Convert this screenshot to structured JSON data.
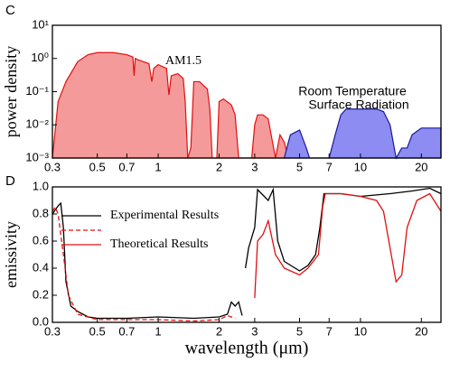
{
  "chart_data": [
    {
      "type": "area",
      "panel_label": "C",
      "ylabel": "power density",
      "xlog": true,
      "ylog": true,
      "xlim": [
        0.3,
        25
      ],
      "ylim": [
        0.001,
        10
      ],
      "xticks": [
        0.3,
        0.5,
        0.7,
        1,
        2,
        3,
        5,
        7,
        10,
        20
      ],
      "yticks": [
        {
          "value": 10,
          "label": "10¹"
        },
        {
          "value": 1,
          "label": "10⁰"
        },
        {
          "value": 0.1,
          "label": "10⁻¹"
        },
        {
          "value": 0.01,
          "label": "10⁻²"
        },
        {
          "value": 0.001,
          "label": "10⁻³"
        }
      ],
      "annotations": [
        "AM1.5",
        "Room Temperature",
        "Surface Radiation"
      ],
      "series": [
        {
          "color": "#e01010",
          "fill": "#f59a9a",
          "x": [
            0.3,
            0.32,
            0.35,
            0.4,
            0.45,
            0.5,
            0.6,
            0.7,
            0.75,
            0.76,
            0.77,
            0.8,
            0.9,
            0.93,
            0.95,
            1.0,
            1.1,
            1.13,
            1.16,
            1.25,
            1.33,
            1.36,
            1.4,
            1.45,
            1.5,
            1.6,
            1.75,
            1.8,
            1.85,
            1.95,
            2.0,
            2.1,
            2.3,
            2.4,
            2.5,
            2.6,
            2.9,
            3.0,
            3.1,
            3.3,
            3.5,
            3.8,
            4.0,
            4.2,
            4.4
          ],
          "values": [
            0.001,
            0.05,
            0.2,
            0.8,
            1.3,
            1.5,
            1.5,
            1.3,
            1.1,
            0.3,
            1.0,
            0.9,
            0.7,
            0.2,
            0.5,
            0.65,
            0.5,
            0.08,
            0.3,
            0.35,
            0.25,
            0.05,
            0.001,
            0.002,
            0.2,
            0.2,
            0.12,
            0.03,
            0.001,
            0.001,
            0.05,
            0.06,
            0.04,
            0.02,
            0.001,
            0.001,
            0.001,
            0.01,
            0.02,
            0.02,
            0.015,
            0.001,
            0.005,
            0.003,
            0.001
          ]
        },
        {
          "color": "#1a1a9a",
          "fill": "#8c8cf2",
          "x": [
            4.2,
            4.5,
            5.0,
            5.4,
            5.6,
            7.0,
            7.5,
            8.0,
            8.5,
            10,
            12,
            13,
            14,
            15,
            16,
            17,
            18,
            20,
            22,
            25
          ],
          "values": [
            0.001,
            0.005,
            0.007,
            0.002,
            0.001,
            0.001,
            0.005,
            0.02,
            0.03,
            0.03,
            0.03,
            0.025,
            0.01,
            0.001,
            0.002,
            0.002,
            0.005,
            0.008,
            0.008,
            0.008
          ]
        }
      ]
    },
    {
      "type": "line",
      "panel_label": "D",
      "ylabel": "emissivity",
      "xlabel": "wavelength (μm)",
      "xlog": true,
      "ylog": false,
      "xlim": [
        0.3,
        25
      ],
      "ylim": [
        0,
        1
      ],
      "xticks": [
        0.3,
        0.5,
        0.7,
        1,
        2,
        3,
        5,
        7,
        10,
        20
      ],
      "yticks": [
        {
          "value": 0,
          "label": "0.0"
        },
        0.2,
        0.4,
        0.6,
        0.8,
        {
          "value": 1,
          "label": "1.0"
        }
      ],
      "legend": "upper left",
      "series": [
        {
          "name": "Experimental Results",
          "color": "#000000",
          "dash": false,
          "x": [
            0.3,
            0.32,
            0.33,
            0.34,
            0.35,
            0.37,
            0.4,
            0.45,
            0.5,
            0.7,
            1.0,
            1.5,
            2.0,
            2.2,
            2.3,
            2.4,
            2.5,
            2.6,
            2.65,
            2.7,
            2.8,
            3.0,
            3.1,
            3.5,
            3.7,
            3.9,
            4.2,
            5.0,
            5.5,
            6.0,
            6.3,
            6.6,
            8,
            10,
            14,
            18,
            22,
            25
          ],
          "values": [
            0.8,
            0.86,
            0.88,
            0.7,
            0.3,
            0.12,
            0.08,
            0.04,
            0.03,
            0.03,
            0.04,
            0.03,
            0.04,
            0.06,
            0.15,
            0.12,
            0.15,
            0.05,
            null,
            0.4,
            0.55,
            0.7,
            0.98,
            0.9,
            0.98,
            0.6,
            0.45,
            0.38,
            0.42,
            0.5,
            0.7,
            0.95,
            0.95,
            0.93,
            0.95,
            0.97,
            0.99,
            0.95
          ]
        },
        {
          "name": null,
          "color": "#e01010",
          "dash": true,
          "x": [
            0.3,
            0.31,
            0.32,
            0.34,
            0.36,
            0.4,
            0.5,
            1.0,
            1.5,
            2.0,
            2.2,
            2.4
          ],
          "values": [
            0.82,
            0.85,
            0.8,
            0.5,
            0.2,
            0.06,
            0.02,
            0.02,
            0.01,
            0.02,
            0.05,
            0.03
          ]
        },
        {
          "name": "Theoretical Results",
          "color": "#e01010",
          "dash": false,
          "x": [
            3.0,
            3.1,
            3.3,
            3.5,
            3.8,
            4.2,
            5.0,
            5.5,
            6.2,
            6.5,
            6.7,
            8,
            10,
            12,
            13,
            14,
            15,
            16,
            17,
            19,
            22,
            25
          ],
          "values": [
            0.18,
            0.6,
            0.65,
            0.75,
            0.5,
            0.4,
            0.35,
            0.4,
            0.5,
            0.85,
            0.95,
            0.95,
            0.93,
            0.9,
            0.82,
            0.55,
            0.3,
            0.35,
            0.7,
            0.9,
            0.95,
            0.82
          ]
        }
      ]
    }
  ]
}
